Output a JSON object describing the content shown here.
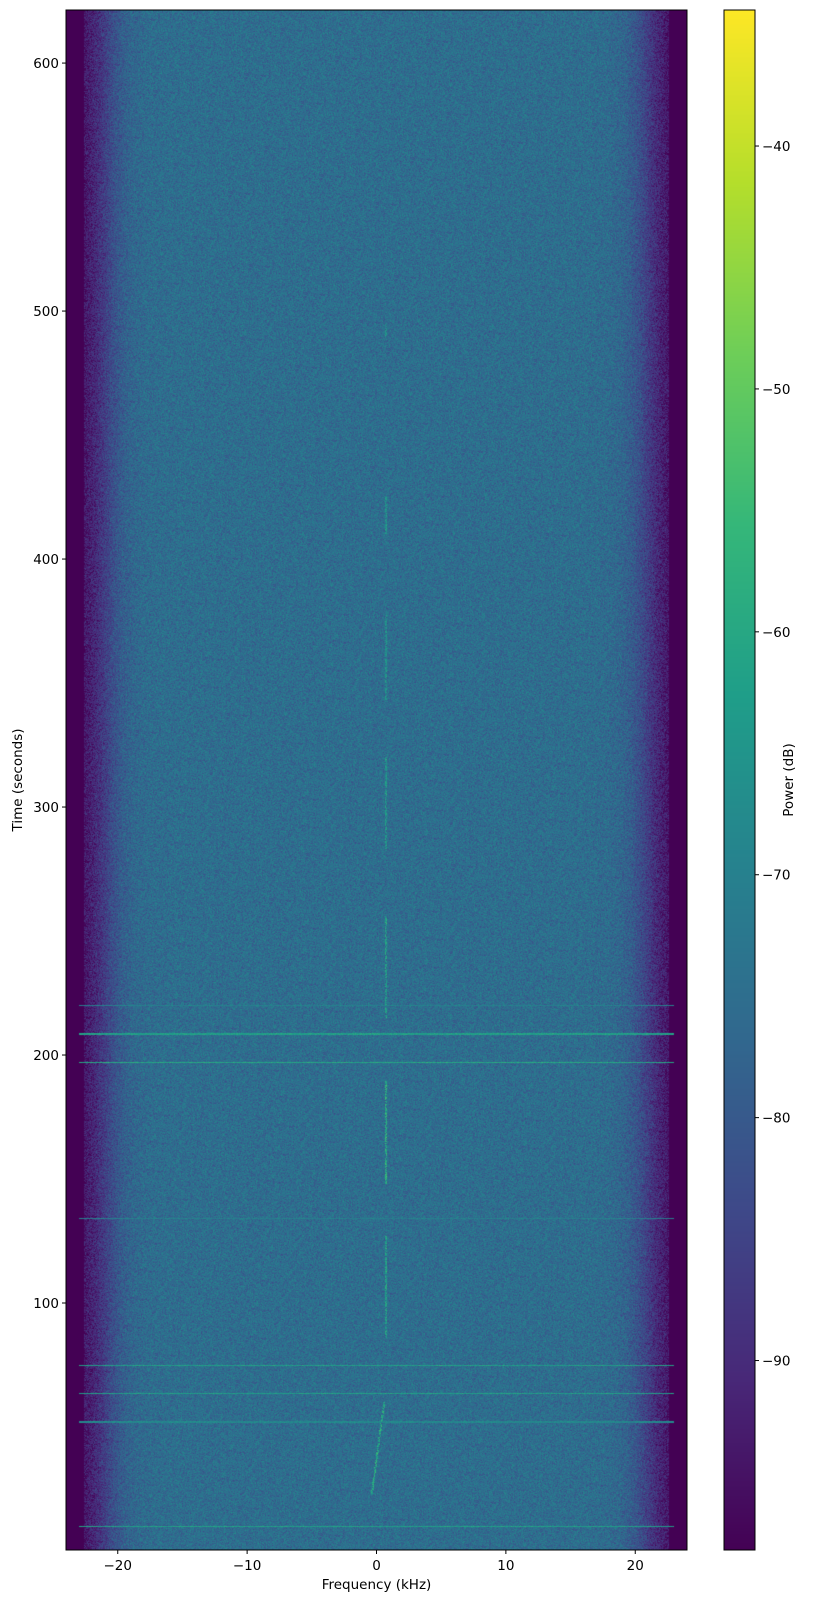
{
  "chart_data": {
    "type": "heatmap",
    "subtype": "spectrogram",
    "title": "",
    "xlabel": "Frequency (kHz)",
    "ylabel": "Time (seconds)",
    "xlim": [
      -24,
      24
    ],
    "ylim": [
      0.4,
      621.4
    ],
    "xticks": [
      {
        "value": -20,
        "label": "−20"
      },
      {
        "value": -10,
        "label": "−10"
      },
      {
        "value": 0,
        "label": "0"
      },
      {
        "value": 10,
        "label": "10"
      },
      {
        "value": 20,
        "label": "20"
      }
    ],
    "yticks": [
      {
        "value": 100,
        "label": "100"
      },
      {
        "value": 200,
        "label": "200"
      },
      {
        "value": 300,
        "label": "300"
      },
      {
        "value": 400,
        "label": "400"
      },
      {
        "value": 500,
        "label": "500"
      },
      {
        "value": 600,
        "label": "600"
      }
    ],
    "grid": false,
    "colormap": "viridis",
    "colormap_stops": [
      "#440154",
      "#482878",
      "#3e4989",
      "#31688e",
      "#26828e",
      "#1f9e89",
      "#35b779",
      "#6ece58",
      "#b5de2b",
      "#fde725"
    ],
    "colorbar": {
      "label": "Power (dB)",
      "range": [
        -97.8,
        -34.4
      ],
      "ticks": [
        {
          "value": -90,
          "label": "−90"
        },
        {
          "value": -80,
          "label": "−80"
        },
        {
          "value": -70,
          "label": "−70"
        },
        {
          "value": -60,
          "label": "−60"
        },
        {
          "value": -50,
          "label": "−50"
        },
        {
          "value": -40,
          "label": "−40"
        }
      ]
    },
    "noise_floor_db": -75,
    "edge_floor_db": -97,
    "passband_edge_khz": 21,
    "horizontal_bursts": [
      {
        "time": 10,
        "power_db": -62
      },
      {
        "time": 52,
        "power_db": -68
      },
      {
        "time": 63.5,
        "power_db": -62
      },
      {
        "time": 74.8,
        "power_db": -62
      },
      {
        "time": 134,
        "power_db": -70
      },
      {
        "time": 197,
        "power_db": -60
      },
      {
        "time": 208.5,
        "power_db": -62
      },
      {
        "time": 220,
        "power_db": -70
      }
    ],
    "carrier_segments": [
      {
        "t_start": 23,
        "t_end": 60,
        "f_start": -0.35,
        "f_end": 0.6,
        "power_db": -60
      },
      {
        "t_start": 86,
        "t_end": 127,
        "f_start": 0.75,
        "f_end": 0.75,
        "power_db": -62
      },
      {
        "t_start": 148,
        "t_end": 190,
        "f_start": 0.75,
        "f_end": 0.75,
        "power_db": -58
      },
      {
        "t_start": 215,
        "t_end": 256,
        "f_start": 0.75,
        "f_end": 0.75,
        "power_db": -62
      },
      {
        "t_start": 283,
        "t_end": 320,
        "f_start": 0.75,
        "f_end": 0.75,
        "power_db": -64
      },
      {
        "t_start": 343,
        "t_end": 378,
        "f_start": 0.75,
        "f_end": 0.75,
        "power_db": -65
      },
      {
        "t_start": 410,
        "t_end": 425,
        "f_start": 0.75,
        "f_end": 0.75,
        "power_db": -65
      },
      {
        "t_start": 490,
        "t_end": 495,
        "f_start": 0.75,
        "f_end": 0.75,
        "power_db": -66
      }
    ]
  }
}
